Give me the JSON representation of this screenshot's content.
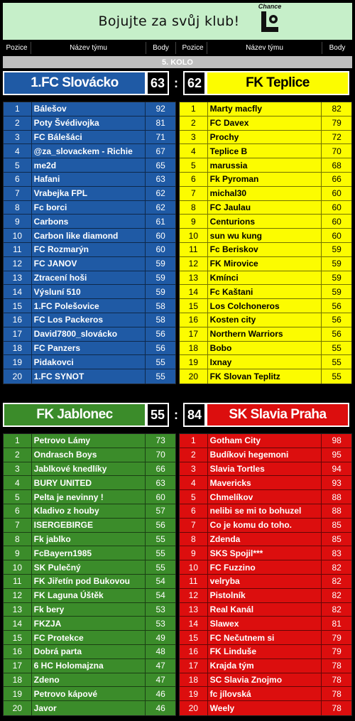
{
  "banner": {
    "title": "Bojujte za svůj klub!",
    "logo_text": "Chance"
  },
  "header": {
    "pos": "Pozice",
    "name": "Název týmu",
    "pts": "Body"
  },
  "round": "5. KOLO",
  "colors": {
    "blue": "#1f5aa5",
    "yellow": "#fcfc00",
    "green": "#3b8c2a",
    "red": "#dc0e0e",
    "banner": "#c6efc9"
  },
  "matches": [
    {
      "home": {
        "name": "1.FC Slovácko",
        "score": "63"
      },
      "away": {
        "name": "FK Teplice",
        "score": "62"
      },
      "separator": ":",
      "home_rows": [
        {
          "pos": "1",
          "name": "Bálešov",
          "pts": "92"
        },
        {
          "pos": "2",
          "name": "Poty Švédivojka",
          "pts": "81"
        },
        {
          "pos": "3",
          "name": "FC Bálešáci",
          "pts": "71"
        },
        {
          "pos": "4",
          "name": "@za_slovackem - Richie",
          "pts": "67"
        },
        {
          "pos": "5",
          "name": "me2d",
          "pts": "65"
        },
        {
          "pos": "6",
          "name": "Hafani",
          "pts": "63"
        },
        {
          "pos": "7",
          "name": "Vrabejka FPL",
          "pts": "62"
        },
        {
          "pos": "8",
          "name": "Fc borci",
          "pts": "62"
        },
        {
          "pos": "9",
          "name": "Carbons",
          "pts": "61"
        },
        {
          "pos": "10",
          "name": "Carbon like diamond",
          "pts": "60"
        },
        {
          "pos": "11",
          "name": "FC Rozmarýn",
          "pts": "60"
        },
        {
          "pos": "12",
          "name": "FC JANOV",
          "pts": "59"
        },
        {
          "pos": "13",
          "name": "Ztracení hoši",
          "pts": "59"
        },
        {
          "pos": "14",
          "name": "Výsluní 510",
          "pts": "59"
        },
        {
          "pos": "15",
          "name": "1.FC Polešovice",
          "pts": "58"
        },
        {
          "pos": "16",
          "name": "FC Los Packeros",
          "pts": "58"
        },
        {
          "pos": "17",
          "name": "David7800_slovácko",
          "pts": "56"
        },
        {
          "pos": "18",
          "name": "FC Panzers",
          "pts": "56"
        },
        {
          "pos": "19",
          "name": "Pidakovci",
          "pts": "55"
        },
        {
          "pos": "20",
          "name": "1.FC SYNOT",
          "pts": "55"
        }
      ],
      "away_rows": [
        {
          "pos": "1",
          "name": "Marty macfly",
          "pts": "82"
        },
        {
          "pos": "2",
          "name": "FC Davex",
          "pts": "79"
        },
        {
          "pos": "3",
          "name": "Prochy",
          "pts": "72"
        },
        {
          "pos": "4",
          "name": "Teplice B",
          "pts": "70"
        },
        {
          "pos": "5",
          "name": "marussia",
          "pts": "68"
        },
        {
          "pos": "6",
          "name": "Fk Pyroman",
          "pts": "66"
        },
        {
          "pos": "7",
          "name": "michal30",
          "pts": "60"
        },
        {
          "pos": "8",
          "name": "FC Jaulau",
          "pts": "60"
        },
        {
          "pos": "9",
          "name": "Centurions",
          "pts": "60"
        },
        {
          "pos": "10",
          "name": "sun wu kung",
          "pts": "60"
        },
        {
          "pos": "11",
          "name": "Fc Beriskov",
          "pts": "59"
        },
        {
          "pos": "12",
          "name": "FK Mirovice",
          "pts": "59"
        },
        {
          "pos": "13",
          "name": "Kmínci",
          "pts": "59"
        },
        {
          "pos": "14",
          "name": "Fc Kaštani",
          "pts": "59"
        },
        {
          "pos": "15",
          "name": "Los Colchoneros",
          "pts": "56"
        },
        {
          "pos": "16",
          "name": "Kosten city",
          "pts": "56"
        },
        {
          "pos": "17",
          "name": "Northern Warriors",
          "pts": "56"
        },
        {
          "pos": "18",
          "name": "Bobo",
          "pts": "55"
        },
        {
          "pos": "19",
          "name": "Ixnay",
          "pts": "55"
        },
        {
          "pos": "20",
          "name": "FK Slovan Teplitz",
          "pts": "55"
        }
      ]
    },
    {
      "home": {
        "name": "FK Jablonec",
        "score": "55"
      },
      "away": {
        "name": "SK Slavia Praha",
        "score": "84"
      },
      "separator": ":",
      "home_rows": [
        {
          "pos": "1",
          "name": "Petrovo Lámy",
          "pts": "73"
        },
        {
          "pos": "2",
          "name": "Ondrasch Boys",
          "pts": "70"
        },
        {
          "pos": "3",
          "name": "Jablkové knedlíky",
          "pts": "66"
        },
        {
          "pos": "4",
          "name": "BURY UNITED",
          "pts": "63"
        },
        {
          "pos": "5",
          "name": "Pelta je nevinny !",
          "pts": "60"
        },
        {
          "pos": "6",
          "name": "Kladivo z houby",
          "pts": "57"
        },
        {
          "pos": "7",
          "name": "ISERGEBIRGE",
          "pts": "56"
        },
        {
          "pos": "8",
          "name": "Fk jablko",
          "pts": "55"
        },
        {
          "pos": "9",
          "name": "FcBayern1985",
          "pts": "55"
        },
        {
          "pos": "10",
          "name": "SK Pulečný",
          "pts": "55"
        },
        {
          "pos": "11",
          "name": "FK Jiřetín pod Bukovou",
          "pts": "54"
        },
        {
          "pos": "12",
          "name": "FK Laguna Úštěk",
          "pts": "54"
        },
        {
          "pos": "13",
          "name": "Fk bery",
          "pts": "53"
        },
        {
          "pos": "14",
          "name": "FKZJA",
          "pts": "53"
        },
        {
          "pos": "15",
          "name": "FC Protekce",
          "pts": "49"
        },
        {
          "pos": "16",
          "name": "Dobrá parta",
          "pts": "48"
        },
        {
          "pos": "17",
          "name": "6 HC Holomajzna",
          "pts": "47"
        },
        {
          "pos": "18",
          "name": "Zdeno",
          "pts": "47"
        },
        {
          "pos": "19",
          "name": "Petrovo kápové",
          "pts": "46"
        },
        {
          "pos": "20",
          "name": "Javor",
          "pts": "46"
        }
      ],
      "away_rows": [
        {
          "pos": "1",
          "name": "Gotham City",
          "pts": "98"
        },
        {
          "pos": "2",
          "name": "Budíkovi hegemoni",
          "pts": "95"
        },
        {
          "pos": "3",
          "name": "Slavia Tortles",
          "pts": "94"
        },
        {
          "pos": "4",
          "name": "Mavericks",
          "pts": "93"
        },
        {
          "pos": "5",
          "name": "Chmelíkov",
          "pts": "88"
        },
        {
          "pos": "6",
          "name": "nelibi se mi to bohuzel",
          "pts": "88"
        },
        {
          "pos": "7",
          "name": "Co je komu do toho.",
          "pts": "85"
        },
        {
          "pos": "8",
          "name": "Zdenda",
          "pts": "85"
        },
        {
          "pos": "9",
          "name": "SKS Spojil***",
          "pts": "83"
        },
        {
          "pos": "10",
          "name": "FC Fuzzino",
          "pts": "82"
        },
        {
          "pos": "11",
          "name": "velryba",
          "pts": "82"
        },
        {
          "pos": "12",
          "name": "Pistolník",
          "pts": "82"
        },
        {
          "pos": "13",
          "name": "Real Kanál",
          "pts": "82"
        },
        {
          "pos": "14",
          "name": "Slawex",
          "pts": "81"
        },
        {
          "pos": "15",
          "name": "FC Nečutnem si",
          "pts": "79"
        },
        {
          "pos": "16",
          "name": "FK Linduše",
          "pts": "79"
        },
        {
          "pos": "17",
          "name": "Krajda tým",
          "pts": "78"
        },
        {
          "pos": "18",
          "name": "SC Slavia Znojmo",
          "pts": "78"
        },
        {
          "pos": "19",
          "name": "fc jílovská",
          "pts": "78"
        },
        {
          "pos": "20",
          "name": "Weely",
          "pts": "78"
        }
      ]
    }
  ]
}
